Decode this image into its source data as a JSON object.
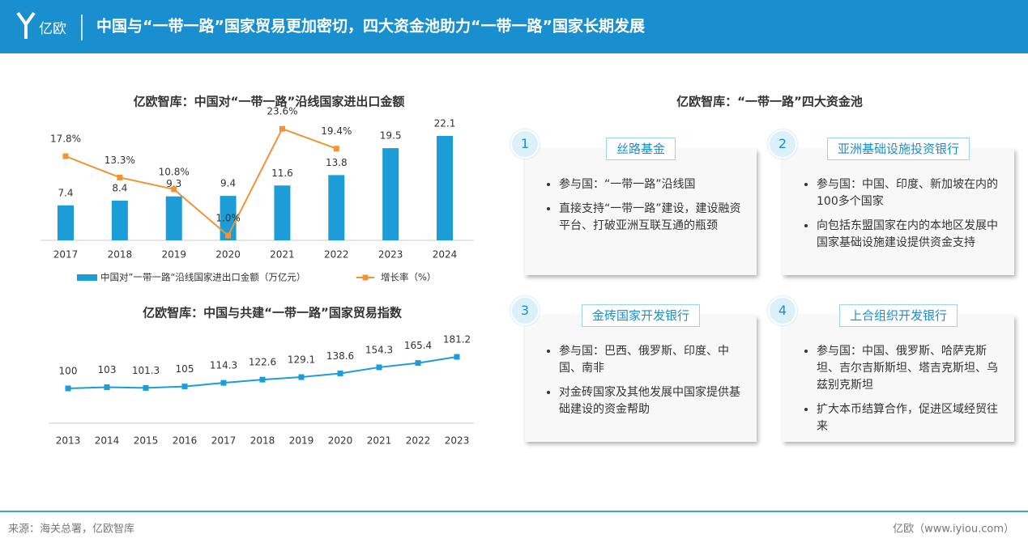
{
  "header": {
    "logo": "亿欧",
    "title": "中国与“一带一路”国家贸易更加密切，四大资金池助力“一带一路”国家长期发展"
  },
  "chart_data": [
    {
      "type": "bar",
      "title": "亿欧智库：中国对“一带一路”沿线国家进出口金额",
      "categories": [
        "2017",
        "2018",
        "2019",
        "2020",
        "2021",
        "2022",
        "2023",
        "2024"
      ],
      "series": [
        {
          "name": "中国对”一带一路“沿线国家进出口金额（万亿元）",
          "type": "bar",
          "color": "#1d9dd7",
          "values": [
            7.4,
            8.4,
            9.3,
            9.4,
            11.6,
            13.8,
            19.5,
            22.1
          ]
        },
        {
          "name": "增长率（%）",
          "type": "line",
          "color": "#ef9438",
          "values": [
            17.8,
            13.3,
            10.8,
            1.0,
            23.6,
            19.4,
            null,
            null
          ],
          "value_labels": [
            "17.8%",
            "13.3%",
            "10.8%",
            "1.0%",
            "23.6%",
            "19.4%",
            null,
            null
          ]
        }
      ],
      "ylim": [
        0,
        25
      ],
      "legend": "bottom"
    },
    {
      "type": "line",
      "title": "亿欧智库：中国与共建“一带一路”国家贸易指数",
      "categories": [
        "2013",
        "2014",
        "2015",
        "2016",
        "2017",
        "2018",
        "2019",
        "2020",
        "2021",
        "2022",
        "2023"
      ],
      "values": [
        100,
        103,
        101.3,
        105,
        114.3,
        122.6,
        129.1,
        138.6,
        154.3,
        165.4,
        181.2
      ],
      "color": "#1d9dd7",
      "ylim": [
        0,
        200
      ]
    }
  ],
  "panel": {
    "title": "亿欧智库：“一带一路”四大资金池",
    "cards": [
      {
        "number": "1",
        "name": "丝路基金",
        "items": [
          "参与国：“一带一路”沿线国",
          "直接支持“一带一路”建设，建设融资平台、打破亚洲互联互通的瓶颈"
        ]
      },
      {
        "number": "2",
        "name": "亚洲基础设施投资银行",
        "items": [
          "参与国：中国、印度、新加坡在内的100多个国家",
          "向包括东盟国家在内的本地区发展中国家基础设施建设提供资金支持"
        ]
      },
      {
        "number": "3",
        "name": "金砖国家开发银行",
        "items": [
          "参与国：巴西、俄罗斯、印度、中国、南非",
          "对金砖国家及其他发展中国家提供基础建设的资金帮助"
        ]
      },
      {
        "number": "4",
        "name": "上合组织开发银行",
        "items": [
          "参与国：中国、俄罗斯、哈萨克斯坦、吉尔吉斯斯坦、塔吉克斯坦、乌兹别克斯坦",
          "扩大本币结算合作，促进区域经贸往来"
        ]
      }
    ]
  },
  "footer": {
    "source": "来源：海关总署，亿欧智库",
    "brand": "亿欧（www.iyiou.com）"
  }
}
